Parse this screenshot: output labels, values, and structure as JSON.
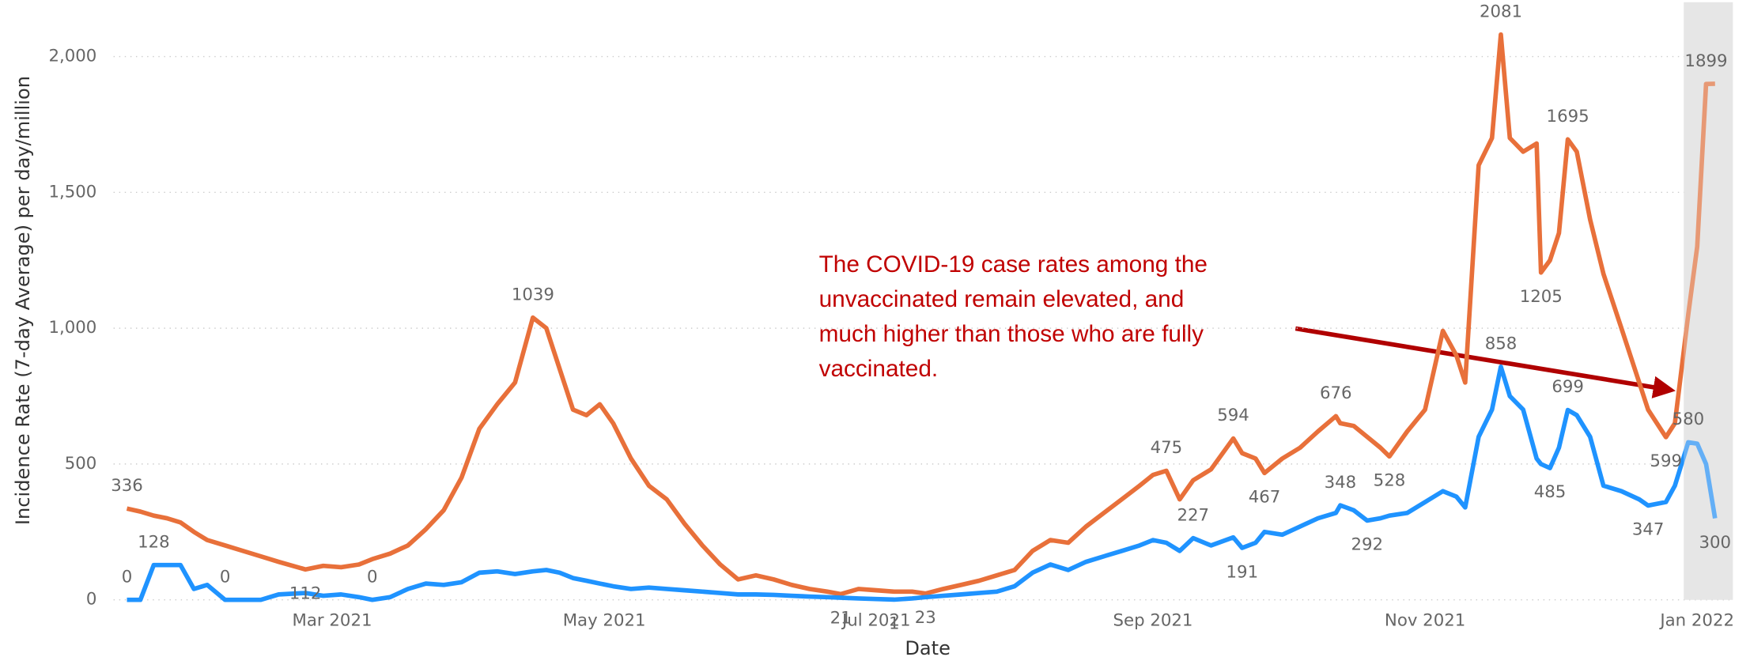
{
  "chart_data": {
    "type": "line",
    "x_label": "Date",
    "y_label": "Incidence Rate (7-day Average) per day/million",
    "annotation": [
      "The COVID-19 case rates among the",
      "unvaccinated remain elevated, and",
      "much higher than those who are fully",
      "vaccinated."
    ],
    "xlim": [
      10,
      373
    ],
    "xticks": [
      {
        "value": 59,
        "label": "Mar 2021"
      },
      {
        "value": 120,
        "label": "May 2021"
      },
      {
        "value": 181,
        "label": "Jul 2021"
      },
      {
        "value": 243,
        "label": "Sep 2021"
      },
      {
        "value": 304,
        "label": "Nov 2021"
      },
      {
        "value": 365,
        "label": "Jan 2022"
      }
    ],
    "ylim": [
      0,
      2200
    ],
    "yticks": [
      0,
      500,
      {
        "value": 1000,
        "label": "1,000"
      },
      {
        "value": 1500,
        "label": "1,500"
      },
      {
        "value": 2000,
        "label": "2,000"
      }
    ],
    "grid": true,
    "shaded_from": 362,
    "x": [
      13,
      16,
      19,
      22,
      25,
      28,
      31,
      35,
      39,
      43,
      47,
      53,
      57,
      61,
      65,
      68,
      72,
      76,
      80,
      84,
      88,
      92,
      96,
      100,
      104,
      107,
      110,
      113,
      116,
      119,
      122,
      126,
      130,
      134,
      138,
      142,
      146,
      150,
      154,
      158,
      162,
      166,
      170,
      173,
      177,
      181,
      185,
      189,
      192,
      196,
      200,
      204,
      208,
      212,
      216,
      220,
      224,
      228,
      232,
      236,
      240,
      243,
      246,
      249,
      252,
      256,
      261,
      263,
      266,
      268,
      272,
      276,
      280,
      284,
      285,
      288,
      291,
      294,
      296,
      300,
      304,
      308,
      311,
      313,
      316,
      319,
      321,
      323,
      326,
      329,
      330,
      332,
      334,
      336,
      338,
      341,
      344,
      348,
      352,
      354,
      358,
      360,
      363,
      365,
      367,
      369
    ],
    "series": [
      {
        "color": "#e8703a",
        "labeled_points": [
          0,
          11,
          24,
          43,
          48,
          62,
          66,
          69,
          73,
          78,
          86,
          90,
          93,
          100,
          104
        ],
        "values": [
          336,
          325,
          310,
          300,
          285,
          250,
          220,
          200,
          180,
          160,
          140,
          112,
          125,
          120,
          130,
          150,
          170,
          200,
          260,
          330,
          450,
          630,
          720,
          800,
          1039,
          1000,
          850,
          700,
          680,
          720,
          650,
          520,
          420,
          370,
          280,
          200,
          130,
          75,
          90,
          75,
          55,
          40,
          30,
          21,
          40,
          35,
          30,
          30,
          23,
          40,
          55,
          70,
          90,
          110,
          180,
          220,
          210,
          270,
          320,
          370,
          420,
          460,
          475,
          370,
          440,
          480,
          594,
          540,
          520,
          467,
          520,
          560,
          620,
          676,
          650,
          640,
          600,
          560,
          528,
          620,
          700,
          990,
          900,
          800,
          1600,
          1700,
          2081,
          1700,
          1650,
          1680,
          1205,
          1250,
          1350,
          1695,
          1650,
          1400,
          1200,
          1000,
          800,
          700,
          599,
          650,
          1050,
          1300,
          1899,
          1900
        ]
      },
      {
        "color": "#1f93ff",
        "labeled_points": [
          0,
          2,
          7,
          15,
          46,
          64,
          67,
          74,
          76,
          86,
          91,
          93,
          99,
          102,
          105
        ],
        "values": [
          0,
          0,
          128,
          128,
          128,
          40,
          55,
          0,
          0,
          0,
          20,
          25,
          15,
          20,
          10,
          0,
          10,
          40,
          60,
          55,
          65,
          100,
          105,
          95,
          105,
          110,
          100,
          80,
          70,
          60,
          50,
          40,
          45,
          40,
          35,
          30,
          25,
          20,
          20,
          18,
          15,
          12,
          10,
          8,
          5,
          3,
          1,
          5,
          10,
          15,
          20,
          25,
          30,
          50,
          100,
          130,
          110,
          140,
          160,
          180,
          200,
          220,
          210,
          180,
          227,
          200,
          230,
          191,
          210,
          250,
          240,
          270,
          300,
          320,
          348,
          330,
          292,
          300,
          310,
          320,
          360,
          400,
          380,
          340,
          600,
          700,
          858,
          750,
          700,
          520,
          500,
          485,
          560,
          699,
          680,
          600,
          420,
          400,
          370,
          347,
          360,
          420,
          580,
          575,
          500,
          300
        ]
      }
    ]
  }
}
